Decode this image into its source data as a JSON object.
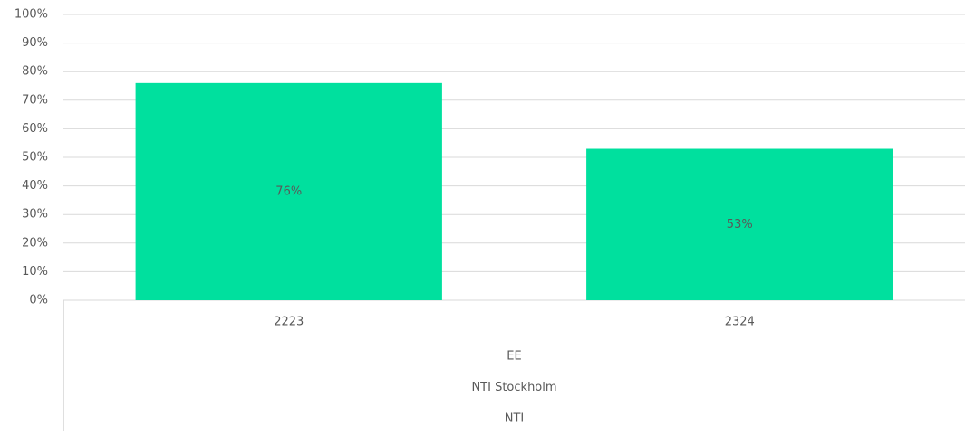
{
  "chart_data": {
    "type": "bar",
    "categories": [
      "2223",
      "2324"
    ],
    "category_levels": [
      "EE",
      "NTI Stockholm",
      "NTI"
    ],
    "values": [
      76,
      53
    ],
    "value_labels": [
      "76%",
      "53%"
    ],
    "color": "#00e09e",
    "ylim": [
      0,
      100
    ],
    "yticks": [
      {
        "value": 0,
        "label": "0%"
      },
      {
        "value": 10,
        "label": "10%"
      },
      {
        "value": 20,
        "label": "20%"
      },
      {
        "value": 30,
        "label": "30%"
      },
      {
        "value": 40,
        "label": "40%"
      },
      {
        "value": 50,
        "label": "50%"
      },
      {
        "value": 60,
        "label": "60%"
      },
      {
        "value": 70,
        "label": "70%"
      },
      {
        "value": 80,
        "label": "80%"
      },
      {
        "value": 90,
        "label": "90%"
      },
      {
        "value": 100,
        "label": "100%"
      }
    ],
    "grid": true
  }
}
